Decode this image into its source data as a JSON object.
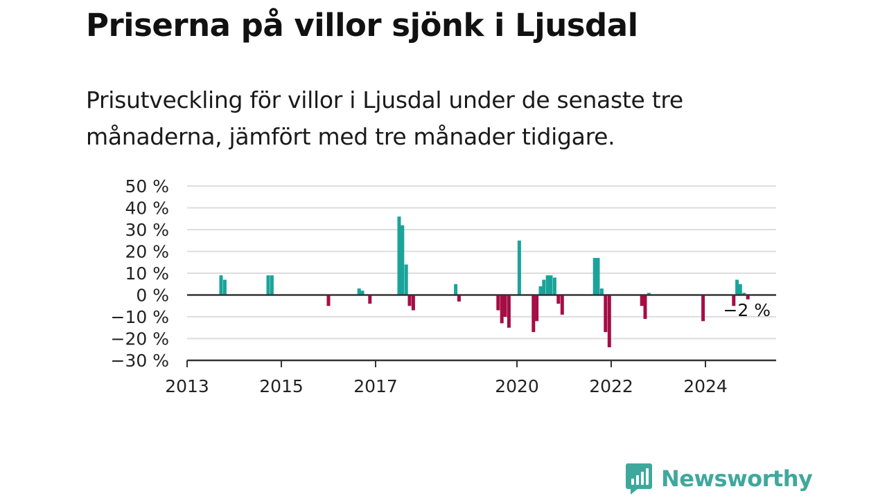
{
  "header": {
    "title": "Priserna på villor sjönk i Ljusdal",
    "subtitle": "Prisutveckling för villor i Ljusdal under de senaste tre månaderna, jämfört med tre månader tidigare."
  },
  "brand": {
    "name": "Newsworthy",
    "color": "#3fa89c",
    "icon": "newsworthy-logo-icon"
  },
  "colors": {
    "positive": "#1aa39b",
    "negative": "#a50d45",
    "grid": "#dddddd",
    "axis": "#333333"
  },
  "chart_data": {
    "type": "bar",
    "title": "Priserna på villor sjönk i Ljusdal",
    "subtitle": "Prisutveckling för villor i Ljusdal under de senaste tre månaderna, jämfört med tre månader tidigare.",
    "unit": "%",
    "ylim": [
      -30,
      50
    ],
    "yticks": [
      50,
      40,
      30,
      20,
      10,
      0,
      -10,
      -20,
      -30
    ],
    "ytick_labels": [
      "50 %",
      "40 %",
      "30 %",
      "20 %",
      "10 %",
      "0 %",
      "−10 %",
      "−20 %",
      "−30 %"
    ],
    "xlim": [
      2013.0,
      2025.5
    ],
    "xticks": [
      2013,
      2015,
      2017,
      2020,
      2022,
      2024
    ],
    "xtick_labels": [
      "2013",
      "2015",
      "2017",
      "2020",
      "2022",
      "2024"
    ],
    "grid": true,
    "legend": "none",
    "last_value_label": "−2 %",
    "x": [
      2013.72,
      2013.8,
      2014.72,
      2014.8,
      2016.0,
      2016.65,
      2016.72,
      2016.88,
      2017.5,
      2017.57,
      2017.65,
      2017.72,
      2017.8,
      2018.7,
      2018.77,
      2019.6,
      2019.68,
      2019.75,
      2019.83,
      2020.05,
      2020.35,
      2020.42,
      2020.5,
      2020.57,
      2020.65,
      2020.72,
      2020.8,
      2020.88,
      2020.96,
      2021.65,
      2021.72,
      2021.8,
      2021.88,
      2021.96,
      2022.65,
      2022.72,
      2022.8,
      2023.95,
      2024.6,
      2024.67,
      2024.74,
      2024.82,
      2024.9
    ],
    "values": [
      9,
      7,
      9,
      9,
      -5,
      3,
      2,
      -4,
      36,
      32,
      14,
      -5,
      -7,
      5,
      -3,
      -7,
      -13,
      -10,
      -15,
      25,
      -17,
      -12,
      4,
      7,
      9,
      9,
      8,
      -4,
      -9,
      17,
      17,
      3,
      -17,
      -24,
      -5,
      -11,
      1,
      -12,
      -5,
      7,
      5,
      1,
      -2
    ]
  }
}
